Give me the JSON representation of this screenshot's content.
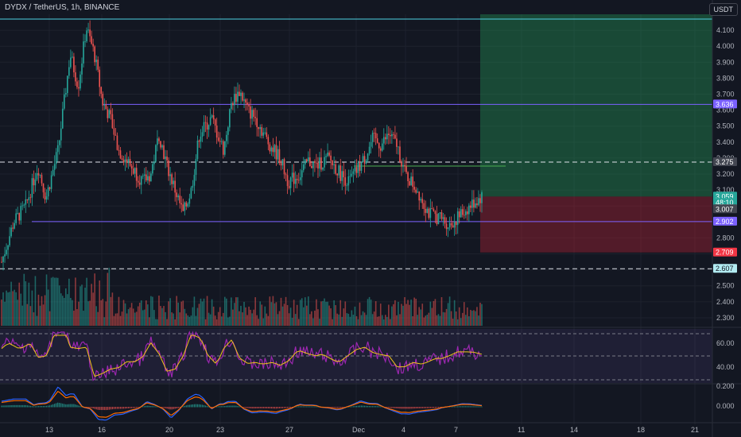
{
  "header": {
    "symbol_title": "DYDX / TetherUS, 1h, BINANCE",
    "currency": "USDT"
  },
  "colors": {
    "up": "#26a69a",
    "down": "#ef5350",
    "bg": "#131722",
    "grid": "#1e222d",
    "purple": "#7b61ff",
    "rsi": "#9c27b0"
  },
  "chart_data": {
    "type": "candlestick",
    "price_axis": {
      "min": 2.25,
      "max": 4.2,
      "ticks": [
        "4.100",
        "4.000",
        "3.900",
        "3.800",
        "3.700",
        "3.600",
        "3.500",
        "3.400",
        "3.300",
        "3.200",
        "3.100",
        "3.000",
        "2.900",
        "2.800",
        "2.700",
        "2.600",
        "2.500",
        "2.400",
        "2.300"
      ]
    },
    "x_axis": {
      "ticks": [
        "13",
        "16",
        "20",
        "23",
        "27",
        "Dec",
        "4",
        "7",
        "11",
        "14",
        "18",
        "21"
      ]
    },
    "price_labels": [
      {
        "text": "3.636",
        "price": 3.636,
        "color": "#7b61ff"
      },
      {
        "text": "3.275",
        "price": 3.275,
        "color": "#434651"
      },
      {
        "text": "3.059",
        "price": 3.059,
        "color": "#26a69a"
      },
      {
        "text": "48:10",
        "price": 3.02,
        "color": "#26a69a"
      },
      {
        "text": "3.007",
        "price": 2.98,
        "color": "#434651"
      },
      {
        "text": "2.902",
        "price": 2.902,
        "color": "#7b61ff"
      },
      {
        "text": "2.709",
        "price": 2.709,
        "color": "#f23645"
      },
      {
        "text": "2.607",
        "price": 2.607,
        "color": "#b2ebf2"
      }
    ],
    "horizontal_levels": [
      {
        "price": 4.17,
        "style": "solid",
        "color": "#4dd0e1"
      },
      {
        "price": 3.636,
        "style": "solid",
        "color": "#7b61ff"
      },
      {
        "price": 3.275,
        "style": "dashed",
        "color": "#e0e3eb"
      },
      {
        "price": 2.902,
        "style": "solid",
        "color": "#7b61ff"
      },
      {
        "price": 2.607,
        "style": "dashed",
        "color": "#e0e3eb"
      }
    ],
    "position": {
      "entry": 3.059,
      "target": 4.2,
      "stop": 2.709
    },
    "close_path": [
      [
        0,
        2.65
      ],
      [
        3,
        2.9
      ],
      [
        6,
        3.0
      ],
      [
        9,
        3.25
      ],
      [
        11,
        3.05
      ],
      [
        14,
        3.35
      ],
      [
        17,
        3.95
      ],
      [
        19,
        3.75
      ],
      [
        21,
        4.12
      ],
      [
        23,
        3.95
      ],
      [
        25,
        3.65
      ],
      [
        27,
        3.55
      ],
      [
        29,
        3.35
      ],
      [
        32,
        3.25
      ],
      [
        35,
        3.15
      ],
      [
        37,
        3.2
      ],
      [
        39,
        3.45
      ],
      [
        41,
        3.25
      ],
      [
        43,
        3.1
      ],
      [
        45,
        2.95
      ],
      [
        47,
        3.1
      ],
      [
        49,
        3.45
      ],
      [
        52,
        3.55
      ],
      [
        55,
        3.35
      ],
      [
        57,
        3.65
      ],
      [
        59,
        3.72
      ],
      [
        61,
        3.6
      ],
      [
        63,
        3.55
      ],
      [
        66,
        3.4
      ],
      [
        69,
        3.3
      ],
      [
        71,
        3.15
      ],
      [
        74,
        3.2
      ],
      [
        76,
        3.28
      ],
      [
        78,
        3.25
      ],
      [
        81,
        3.3
      ],
      [
        84,
        3.2
      ],
      [
        86,
        3.15
      ],
      [
        88,
        3.22
      ],
      [
        90,
        3.3
      ],
      [
        92,
        3.42
      ],
      [
        94,
        3.38
      ],
      [
        96,
        3.45
      ],
      [
        98,
        3.38
      ],
      [
        100,
        3.2
      ],
      [
        103,
        3.1
      ],
      [
        106,
        2.95
      ],
      [
        109,
        2.92
      ],
      [
        111,
        2.88
      ],
      [
        114,
        2.95
      ],
      [
        117,
        3.02
      ],
      [
        119,
        3.06
      ]
    ]
  }
}
